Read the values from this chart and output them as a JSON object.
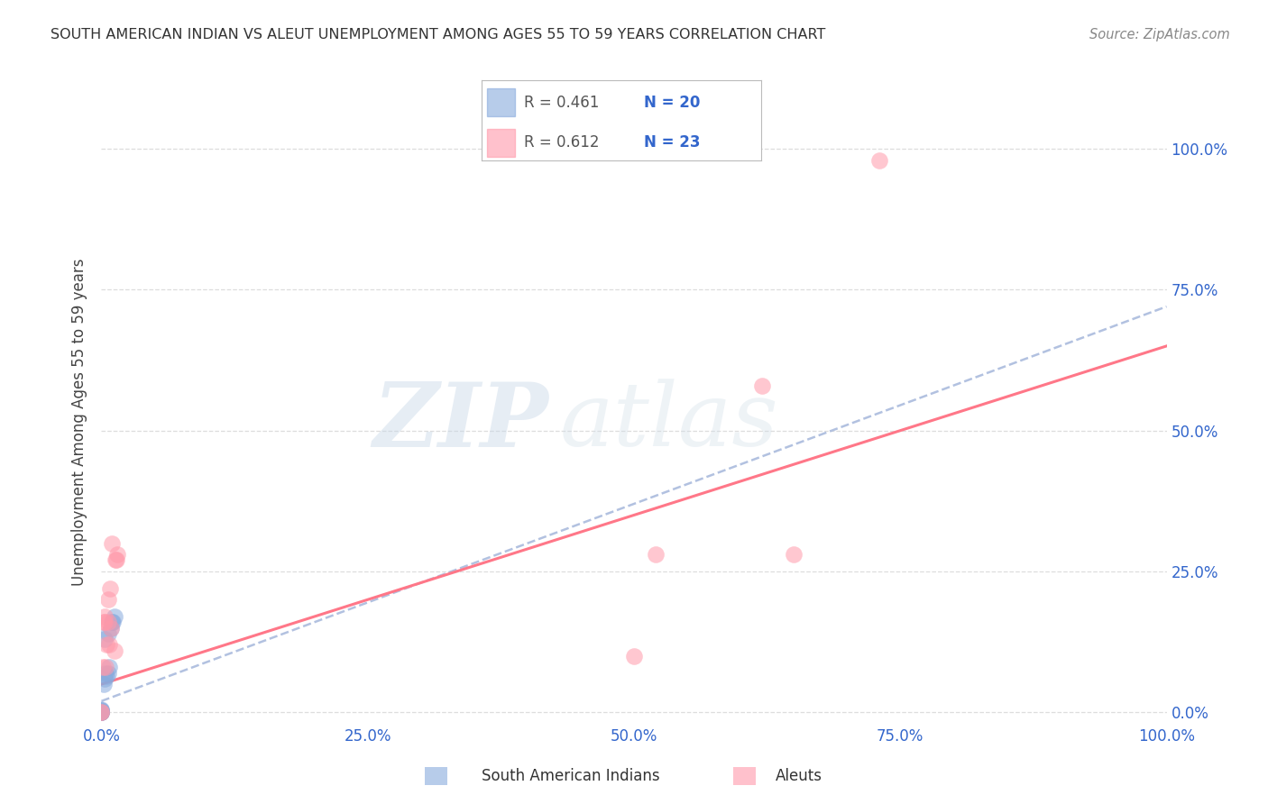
{
  "title": "SOUTH AMERICAN INDIAN VS ALEUT UNEMPLOYMENT AMONG AGES 55 TO 59 YEARS CORRELATION CHART",
  "source": "Source: ZipAtlas.com",
  "ylabel": "Unemployment Among Ages 55 to 59 years",
  "xlim": [
    0,
    1.0
  ],
  "ylim": [
    -0.02,
    1.05
  ],
  "xtick_vals": [
    0.0,
    0.25,
    0.5,
    0.75,
    1.0
  ],
  "xtick_labels": [
    "0.0%",
    "25.0%",
    "50.0%",
    "75.0%",
    "100.0%"
  ],
  "ytick_vals": [
    0.0,
    0.25,
    0.5,
    0.75,
    1.0
  ],
  "ytick_right_labels": [
    "0.0%",
    "25.0%",
    "50.0%",
    "75.0%",
    "100.0%"
  ],
  "grid_color": "#DDDDDD",
  "color_blue": "#88AADD",
  "color_pink": "#FF99AA",
  "color_blue_line": "#AABBDD",
  "color_pink_line": "#FF7788",
  "watermark_zip": "ZIP",
  "watermark_atlas": "atlas",
  "south_american_indians_x": [
    0.0,
    0.0,
    0.0,
    0.0,
    0.0,
    0.0,
    0.0,
    0.0,
    0.002,
    0.003,
    0.003,
    0.004,
    0.005,
    0.006,
    0.006,
    0.007,
    0.009,
    0.01,
    0.011,
    0.012
  ],
  "south_american_indians_y": [
    0.0,
    0.0,
    0.0,
    0.0,
    0.0,
    0.003,
    0.004,
    0.005,
    0.05,
    0.06,
    0.13,
    0.07,
    0.065,
    0.07,
    0.14,
    0.08,
    0.15,
    0.16,
    0.16,
    0.17
  ],
  "aleuts_x": [
    0.0,
    0.0,
    0.001,
    0.002,
    0.003,
    0.003,
    0.004,
    0.005,
    0.006,
    0.006,
    0.007,
    0.008,
    0.009,
    0.01,
    0.012,
    0.013,
    0.014,
    0.015,
    0.5,
    0.52,
    0.62,
    0.65,
    0.73
  ],
  "aleuts_y": [
    0.0,
    0.0,
    0.08,
    0.16,
    0.16,
    0.17,
    0.08,
    0.12,
    0.16,
    0.2,
    0.12,
    0.22,
    0.15,
    0.3,
    0.11,
    0.27,
    0.27,
    0.28,
    0.1,
    0.28,
    0.58,
    0.28,
    0.98
  ],
  "blue_trendline_x0": 0.0,
  "blue_trendline_y0": 0.02,
  "blue_trendline_x1": 1.0,
  "blue_trendline_y1": 0.72,
  "pink_trendline_x0": 0.0,
  "pink_trendline_y0": 0.05,
  "pink_trendline_x1": 1.0,
  "pink_trendline_y1": 0.65,
  "legend_r1": "R = 0.461",
  "legend_n1": "N = 20",
  "legend_r2": "R = 0.612",
  "legend_n2": "N = 23",
  "legend_r_color": "#555555",
  "legend_n_color": "#3366CC",
  "tick_color": "#3366CC",
  "title_color": "#333333",
  "source_color": "#888888",
  "ylabel_color": "#444444",
  "bottom_legend_label1": "South American Indians",
  "bottom_legend_label2": "Aleuts"
}
